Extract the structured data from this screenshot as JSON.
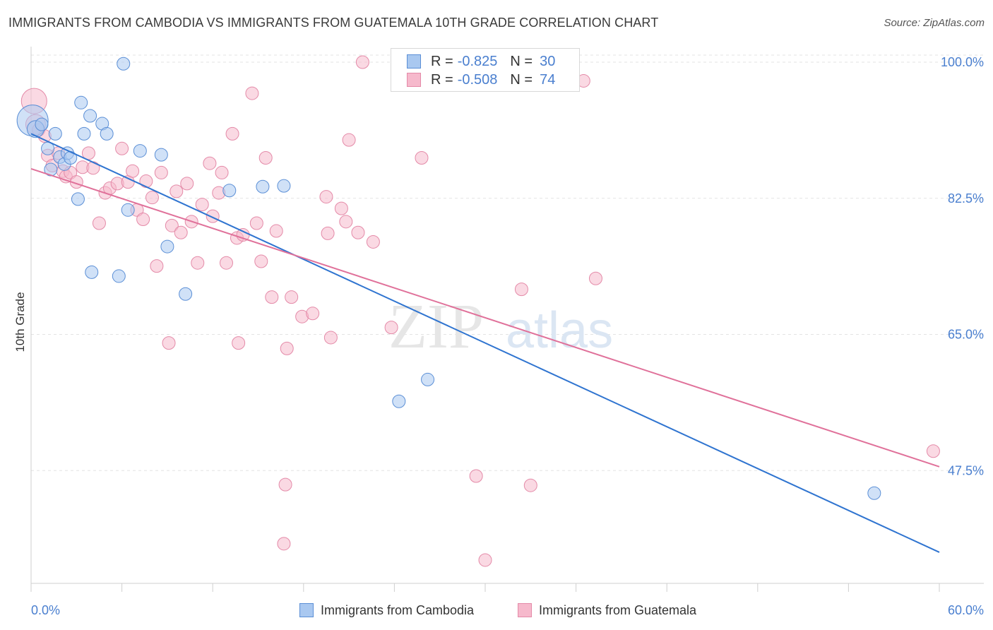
{
  "title": "IMMIGRANTS FROM CAMBODIA VS IMMIGRANTS FROM GUATEMALA 10TH GRADE CORRELATION CHART",
  "source": "Source: ZipAtlas.com",
  "watermark": {
    "zip": "ZIP",
    "atlas": "atlas"
  },
  "legend": {
    "rows": [
      {
        "r_label": "R =",
        "r_value": "-0.825",
        "n_label": "N =",
        "n_value": "30"
      },
      {
        "r_label": "R =",
        "r_value": "-0.508",
        "n_label": "N =",
        "n_value": "74"
      }
    ]
  },
  "bottom_legend": [
    "Immigrants from Cambodia",
    "Immigrants from Guatemala"
  ],
  "colors": {
    "cambodia_fill": "#a9c8f0",
    "cambodia_stroke": "#5b8fd6",
    "cambodia_line": "#2f74d0",
    "guatemala_fill": "#f6b9cc",
    "guatemala_stroke": "#e48aa8",
    "guatemala_line": "#e0719a",
    "tick_label": "#4a7fcf",
    "grid": "#e3e3e3"
  },
  "chart_data": {
    "type": "scatter",
    "title": "IMMIGRANTS FROM CAMBODIA VS IMMIGRANTS FROM GUATEMALA 10TH GRADE CORRELATION CHART",
    "xlabel": "",
    "ylabel": "10th Grade",
    "xlim": [
      0,
      60
    ],
    "ylim": [
      33,
      102
    ],
    "x_tick_labels": [
      {
        "value": 0,
        "label": "0.0%"
      },
      {
        "value": 60,
        "label": "60.0%"
      }
    ],
    "y_tick_labels": [
      {
        "value": 100,
        "label": "100.0%"
      },
      {
        "value": 82.5,
        "label": "82.5%"
      },
      {
        "value": 65,
        "label": "65.0%"
      },
      {
        "value": 47.5,
        "label": "47.5%"
      }
    ],
    "grid": true,
    "legend_position": "top-center",
    "series": [
      {
        "name": "Immigrants from Cambodia",
        "trend": {
          "x": [
            0,
            60
          ],
          "y": [
            90.8,
            37.0
          ]
        },
        "points": [
          [
            0.1,
            92.5,
            22
          ],
          [
            0.3,
            91.4,
            12
          ],
          [
            0.7,
            92.0,
            9
          ],
          [
            1.1,
            88.9,
            9
          ],
          [
            1.3,
            86.2,
            9
          ],
          [
            1.6,
            90.8,
            9
          ],
          [
            1.9,
            87.8,
            9
          ],
          [
            2.2,
            86.9,
            9
          ],
          [
            2.4,
            88.3,
            9
          ],
          [
            2.6,
            87.7,
            9
          ],
          [
            3.1,
            82.4,
            9
          ],
          [
            3.3,
            94.8,
            9
          ],
          [
            3.5,
            90.8,
            9
          ],
          [
            3.9,
            93.1,
            9
          ],
          [
            4.0,
            73.0,
            9
          ],
          [
            4.7,
            92.1,
            9
          ],
          [
            5.0,
            90.8,
            9
          ],
          [
            5.8,
            72.5,
            9
          ],
          [
            6.1,
            99.8,
            9
          ],
          [
            6.4,
            81.0,
            9
          ],
          [
            7.2,
            88.6,
            9
          ],
          [
            8.6,
            88.1,
            9
          ],
          [
            9.0,
            76.3,
            9
          ],
          [
            10.2,
            70.2,
            9
          ],
          [
            13.1,
            83.5,
            9
          ],
          [
            15.3,
            84.0,
            9
          ],
          [
            16.7,
            84.1,
            9
          ],
          [
            24.3,
            56.4,
            9
          ],
          [
            26.2,
            59.2,
            9
          ],
          [
            55.7,
            44.6,
            9
          ]
        ]
      },
      {
        "name": "Immigrants from Guatemala",
        "trend": {
          "x": [
            0,
            60
          ],
          "y": [
            86.3,
            48.0
          ]
        },
        "points": [
          [
            0.2,
            95.0,
            18
          ],
          [
            0.3,
            92.0,
            14
          ],
          [
            0.5,
            91.3,
            9
          ],
          [
            0.9,
            90.5,
            9
          ],
          [
            1.1,
            88.0,
            9
          ],
          [
            1.4,
            86.7,
            9
          ],
          [
            1.8,
            88.3,
            9
          ],
          [
            2.1,
            86.0,
            9
          ],
          [
            2.3,
            85.3,
            9
          ],
          [
            2.6,
            85.8,
            9
          ],
          [
            3.0,
            84.6,
            9
          ],
          [
            3.4,
            86.5,
            9
          ],
          [
            3.8,
            88.3,
            9
          ],
          [
            4.1,
            86.4,
            9
          ],
          [
            4.5,
            79.3,
            9
          ],
          [
            4.9,
            83.2,
            9
          ],
          [
            5.2,
            83.8,
            9
          ],
          [
            5.7,
            84.4,
            9
          ],
          [
            6.0,
            88.9,
            9
          ],
          [
            6.4,
            84.6,
            9
          ],
          [
            6.7,
            86.0,
            9
          ],
          [
            7.0,
            81.0,
            9
          ],
          [
            7.4,
            79.8,
            9
          ],
          [
            7.6,
            84.7,
            9
          ],
          [
            8.0,
            82.6,
            9
          ],
          [
            8.3,
            73.8,
            9
          ],
          [
            8.6,
            85.8,
            9
          ],
          [
            9.1,
            63.9,
            9
          ],
          [
            9.3,
            79.0,
            9
          ],
          [
            9.6,
            83.4,
            9
          ],
          [
            9.9,
            78.1,
            9
          ],
          [
            10.3,
            84.4,
            9
          ],
          [
            10.6,
            79.5,
            9
          ],
          [
            11.0,
            74.2,
            9
          ],
          [
            11.3,
            81.7,
            9
          ],
          [
            11.8,
            87.0,
            9
          ],
          [
            12.0,
            80.2,
            9
          ],
          [
            12.4,
            83.2,
            9
          ],
          [
            12.6,
            85.8,
            9
          ],
          [
            13.3,
            90.8,
            9
          ],
          [
            12.9,
            74.2,
            9
          ],
          [
            13.6,
            77.4,
            9
          ],
          [
            14.0,
            77.8,
            9
          ],
          [
            14.6,
            96.0,
            9
          ],
          [
            14.9,
            79.3,
            9
          ],
          [
            15.2,
            74.4,
            9
          ],
          [
            15.5,
            87.7,
            9
          ],
          [
            15.9,
            69.8,
            9
          ],
          [
            16.2,
            78.3,
            9
          ],
          [
            16.9,
            63.2,
            9
          ],
          [
            17.2,
            69.8,
            9
          ],
          [
            17.9,
            67.3,
            9
          ],
          [
            18.6,
            67.7,
            9
          ],
          [
            19.5,
            82.7,
            9
          ],
          [
            19.6,
            78.0,
            9
          ],
          [
            19.8,
            64.6,
            9
          ],
          [
            20.5,
            81.2,
            9
          ],
          [
            20.8,
            79.5,
            9
          ],
          [
            21.0,
            90.0,
            9
          ],
          [
            21.6,
            78.1,
            9
          ],
          [
            21.9,
            100.0,
            9
          ],
          [
            22.6,
            76.9,
            9
          ],
          [
            23.8,
            65.9,
            9
          ],
          [
            25.8,
            87.7,
            9
          ],
          [
            29.4,
            46.8,
            9
          ],
          [
            30.0,
            36.0,
            9
          ],
          [
            32.4,
            70.8,
            9
          ],
          [
            33.0,
            45.6,
            9
          ],
          [
            36.5,
            97.6,
            9
          ],
          [
            37.3,
            72.2,
            9
          ],
          [
            59.6,
            50.0,
            9
          ],
          [
            13.7,
            63.9,
            9
          ],
          [
            16.8,
            45.7,
            9
          ],
          [
            16.7,
            38.1,
            9
          ]
        ]
      }
    ]
  }
}
